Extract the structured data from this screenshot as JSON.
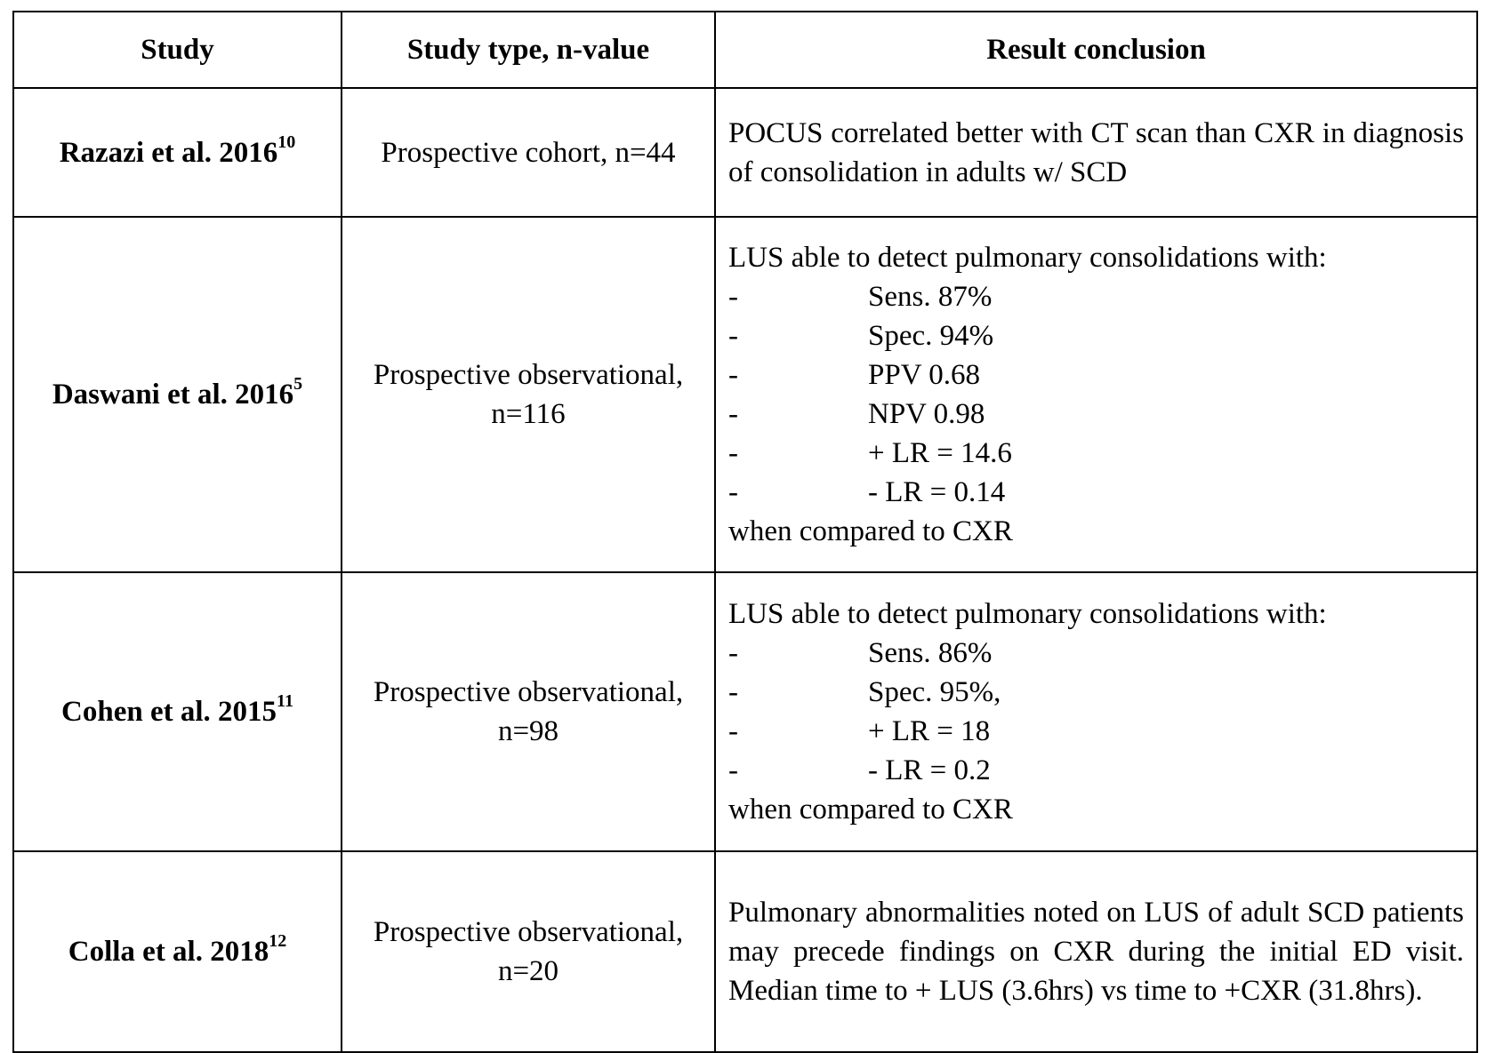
{
  "table": {
    "headers": [
      "Study",
      "Study type, n-value",
      "Result conclusion"
    ],
    "rows": [
      {
        "study": "Razazi et al. 2016",
        "ref": "10",
        "type_line1": "Prospective cohort, n=44",
        "type_line2": "",
        "result_text": "POCUS correlated better with CT scan than CXR in diagnosis of consolidation in adults w/ SCD"
      },
      {
        "study": "Daswani et al. 2016",
        "ref": "5",
        "type_line1": "Prospective observational,",
        "type_line2": "n=116",
        "result_intro": "LUS able to detect pulmonary consolidations with:",
        "bullets": [
          "Sens. 87%",
          "Spec. 94%",
          "PPV 0.68",
          "NPV 0.98",
          "+ LR = 14.6",
          "- LR = 0.14"
        ],
        "result_outro": "when compared to CXR"
      },
      {
        "study": "Cohen et al. 2015",
        "ref": "11",
        "type_line1": "Prospective observational,",
        "type_line2": "n=98",
        "result_intro": "LUS able to detect pulmonary consolidations with:",
        "bullets": [
          "Sens. 86%",
          "Spec. 95%,",
          "+ LR = 18",
          "- LR = 0.2"
        ],
        "result_outro": "when compared to CXR"
      },
      {
        "study": "Colla et al. 2018",
        "ref": "12",
        "type_line1": "Prospective observational,",
        "type_line2": "n=20",
        "result_text": "Pulmonary abnormalities noted on LUS of adult SCD patients may precede findings on CXR during the initial ED visit. Median time to + LUS (3.6hrs) vs time to +CXR (31.8hrs)."
      }
    ],
    "bullet_marker": "-"
  }
}
